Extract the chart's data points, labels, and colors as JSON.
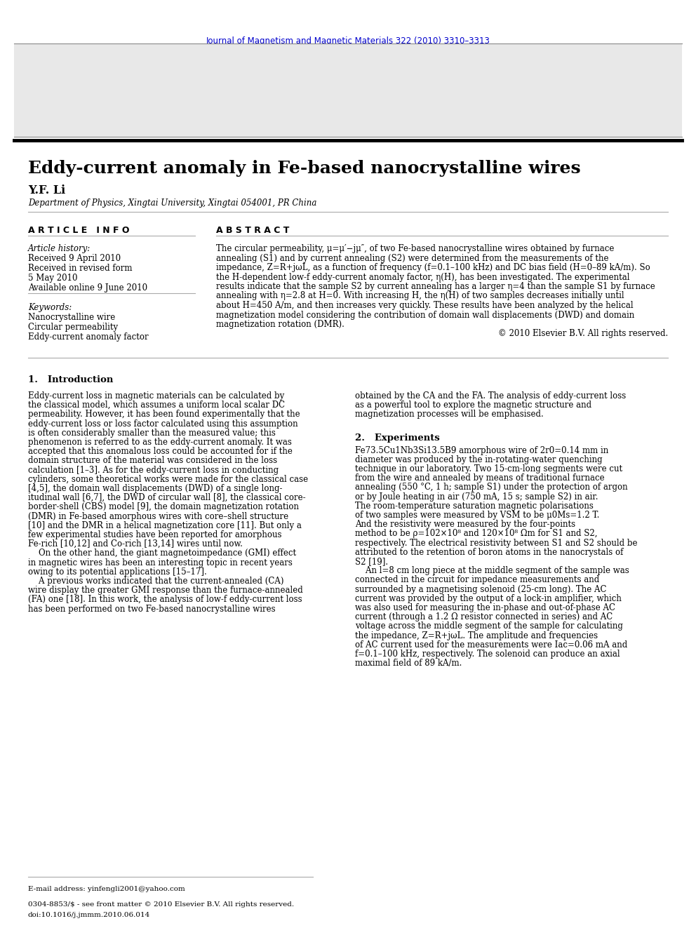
{
  "journal_ref": "Journal of Magnetism and Magnetic Materials 322 (2010) 3310–3313",
  "sciencedirect_color": "#0000cc",
  "journal_title": "Journal of Magnetism and Magnetic Materials",
  "homepage_link_color": "#0000cc",
  "journal_ref_color": "#0000cc",
  "paper_title": "Eddy-current anomaly in Fe-based nanocrystalline wires",
  "author": "Y.F. Li",
  "affiliation": "Department of Physics, Xingtai University, Xingtai 054001, PR China",
  "article_info_title": "A R T I C L E   I N F O",
  "abstract_title": "A B S T R A C T",
  "article_history_label": "Article history:",
  "received": "Received 9 April 2010",
  "revised": "Received in revised form",
  "revised2": "5 May 2010",
  "online": "Available online 9 June 2010",
  "keywords_label": "Keywords:",
  "kw1": "Nanocrystalline wire",
  "kw2": "Circular permeability",
  "kw3": "Eddy-current anomaly factor",
  "copyright_text": "© 2010 Elsevier B.V. All rights reserved.",
  "intro_title": "1.   Introduction",
  "experiments_title": "2.   Experiments",
  "footer_email": "E-mail address: yinfengli2001@yahoo.com",
  "footer_issn": "0304-8853/$ - see front matter © 2010 Elsevier B.V. All rights reserved.",
  "footer_doi": "doi:10.1016/j.jmmm.2010.06.014",
  "abstract_lines": [
    "The circular permeability, μ=μ′−jμ″, of two Fe-based nanocrystalline wires obtained by furnace",
    "annealing (S1) and by current annealing (S2) were determined from the measurements of the",
    "impedance, Z=R+jωL, as a function of frequency (f=0.1–100 kHz) and DC bias field (H=0–89 kA/m). So",
    "the H-dependent low-f eddy-current anomaly factor, η(H), has been investigated. The experimental",
    "results indicate that the sample S2 by current annealing has a larger η=4 than the sample S1 by furnace",
    "annealing with η=2.8 at H=0. With increasing H, the η(H) of two samples decreases initially until",
    "about H=450 A/m, and then increases very quickly. These results have been analyzed by the helical",
    "magnetization model considering the contribution of domain wall displacements (DWD) and domain",
    "magnetization rotation (DMR)."
  ],
  "intro_left_lines": [
    "Eddy-current loss in magnetic materials can be calculated by",
    "the classical model, which assumes a uniform local scalar DC",
    "permeability. However, it has been found experimentally that the",
    "eddy-current loss or loss factor calculated using this assumption",
    "is often considerably smaller than the measured value; this",
    "phenomenon is referred to as the eddy-current anomaly. It was",
    "accepted that this anomalous loss could be accounted for if the",
    "domain structure of the material was considered in the loss",
    "calculation [1–3]. As for the eddy-current loss in conducting",
    "cylinders, some theoretical works were made for the classical case",
    "[4,5], the domain wall displacements (DWD) of a single long-",
    "itudinal wall [6,7], the DWD of circular wall [8], the classical core-",
    "border-shell (CBS) model [9], the domain magnetization rotation",
    "(DMR) in Fe-based amorphous wires with core–shell structure",
    "[10] and the DMR in a helical magnetization core [11]. But only a",
    "few experimental studies have been reported for amorphous",
    "Fe-rich [10,12] and Co-rich [13,14] wires until now.",
    "    On the other hand, the giant magnetoimpedance (GMI) effect",
    "in magnetic wires has been an interesting topic in recent years",
    "owing to its potential applications [15–17].",
    "    A previous works indicated that the current-annealed (CA)",
    "wire display the greater GMI response than the furnace-annealed",
    "(FA) one [18]. In this work, the analysis of low-f eddy-current loss",
    "has been performed on two Fe-based nanocrystalline wires"
  ],
  "intro_right_lines": [
    "obtained by the CA and the FA. The analysis of eddy-current loss",
    "as a powerful tool to explore the magnetic structure and",
    "magnetization processes will be emphasised."
  ],
  "exp_lines": [
    "Fe73.5Cu1Nb3Si13.5B9 amorphous wire of 2r0=0.14 mm in",
    "diameter was produced by the in-rotating-water quenching",
    "technique in our laboratory. Two 15-cm-long segments were cut",
    "from the wire and annealed by means of traditional furnace",
    "annealing (550 °C, 1 h; sample S1) under the protection of argon",
    "or by Joule heating in air (750 mA, 15 s; sample S2) in air.",
    "The room-temperature saturation magnetic polarisations",
    "of two samples were measured by VSM to be μ0Ms=1.2 T.",
    "And the resistivity were measured by the four-points",
    "method to be ρ=102×10⁸ and 120×10⁸ Ωm for S1 and S2,",
    "respectively. The electrical resistivity between S1 and S2 should be",
    "attributed to the retention of boron atoms in the nanocrystals of",
    "S2 [19].",
    "    An l=8 cm long piece at the middle segment of the sample was",
    "connected in the circuit for impedance measurements and",
    "surrounded by a magnetising solenoid (25-cm long). The AC",
    "current was provided by the output of a lock-in amplifier, which",
    "was also used for measuring the in-phase and out-of-phase AC",
    "current (through a 1.2 Ω resistor connected in series) and AC",
    "voltage across the middle segment of the sample for calculating",
    "the impedance, Z=R+jωL. The amplitude and frequencies",
    "of AC current used for the measurements were Iac=0.06 mA and",
    "f=0.1–100 kHz, respectively. The solenoid can produce an axial",
    "maximal field of 89 kA/m."
  ]
}
